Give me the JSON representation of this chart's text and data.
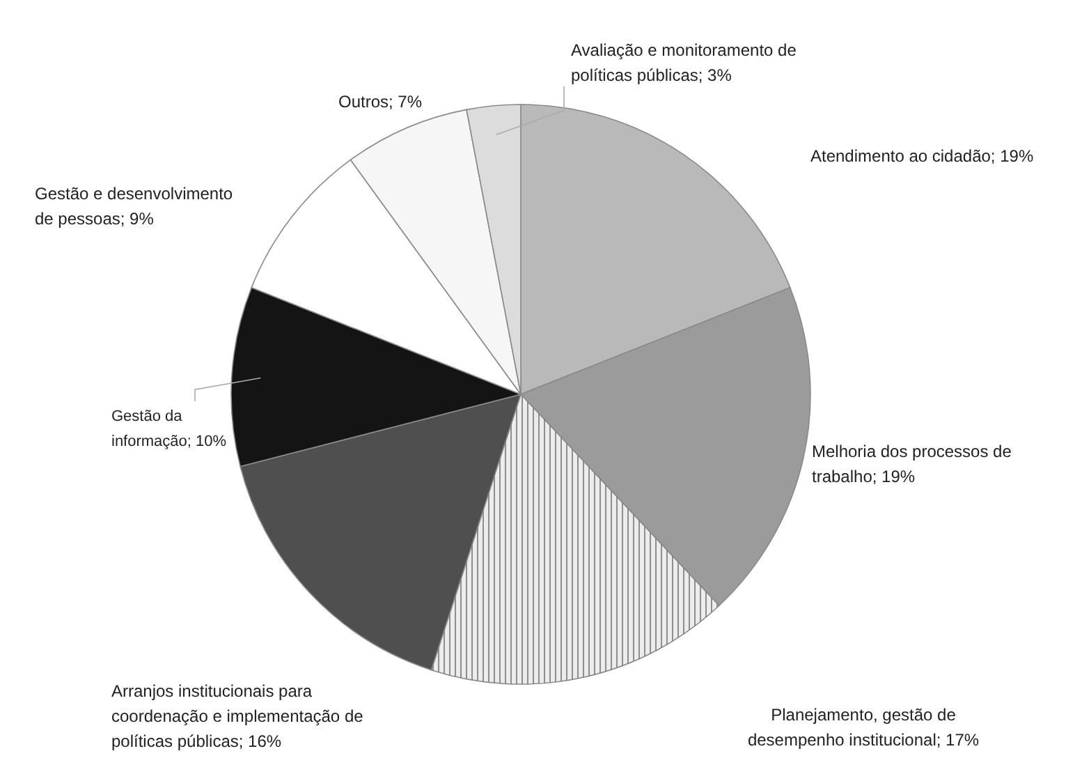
{
  "chart_data": {
    "type": "pie",
    "categories": [
      "Atendimento ao cidadão; 19%",
      "Melhoria dos processos de trabalho; 19%",
      "Planejamento, gestão de desempenho institucional; 17%",
      "Arranjos institucionais para coordenação e implementação de políticas públicas; 16%",
      "Gestão da informação; 10%",
      "Gestão e desenvolvimento de pessoas; 9%",
      "Outros; 7%",
      "Avaliação e monitoramento de políticas públicas; 3%"
    ],
    "values": [
      19,
      19,
      17,
      16,
      10,
      9,
      7,
      3
    ],
    "colors": [
      "#b9b9b9",
      "#9b9b9b",
      "#ececec",
      "#4f4f4f",
      "#141414",
      "#ffffff",
      "#f6f6f6",
      "#dcdcdc"
    ]
  }
}
